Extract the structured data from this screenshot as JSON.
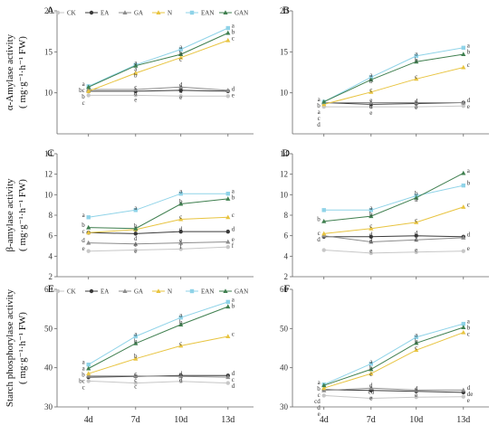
{
  "chart_data": {
    "type": "line",
    "x_labels": [
      "4d",
      "7d",
      "10d",
      "13d"
    ],
    "legend": [
      "CK",
      "EA",
      "GA",
      "N",
      "EAN",
      "GAN"
    ],
    "colors": {
      "CK": "#c7c7c7",
      "EA": "#3a3a3a",
      "GA": "#8c8c8c",
      "N": "#e8c440",
      "EAN": "#8fd3e8",
      "GAN": "#3f7f4f"
    },
    "rows": [
      {
        "ylabel": "α-Amylase activity",
        "yunit": "( mg·g⁻¹·h⁻¹ FW)",
        "panels": [
          "A",
          "B"
        ],
        "ylim": [
          5,
          20
        ],
        "yticks": [
          10,
          15,
          20
        ]
      },
      {
        "ylabel": "β-amylase activity",
        "yunit": "( mg·g⁻¹·h⁻¹ FW)",
        "panels": [
          "C",
          "D"
        ],
        "ylim": [
          2,
          14
        ],
        "yticks": [
          2,
          4,
          6,
          8,
          10,
          12,
          14
        ]
      },
      {
        "ylabel": "Starch phosphorylase activity",
        "yunit": "( mg·g⁻¹·h⁻¹ FW)",
        "panels": [
          "E",
          "F"
        ],
        "ylim": [
          30,
          60
        ],
        "yticks": [
          30,
          40,
          50,
          60
        ]
      }
    ],
    "panels": [
      {
        "id": "A",
        "legend_shown": true,
        "series": [
          {
            "name": "CK",
            "values": [
              9.7,
              9.7,
              9.6,
              9.6
            ],
            "letters": [
              "c",
              "e",
              "e",
              "e"
            ]
          },
          {
            "name": "EA",
            "values": [
              10.2,
              10.2,
              10.3,
              10.2
            ],
            "letters": [
              "bc",
              "d",
              "d",
              "d"
            ]
          },
          {
            "name": "GA",
            "values": [
              10.4,
              10.4,
              10.7,
              10.3
            ],
            "letters": [
              "",
              "c",
              "d",
              ""
            ]
          },
          {
            "name": "N",
            "values": [
              10.2,
              12.4,
              14.3,
              16.4
            ],
            "letters": [
              "b",
              "b",
              "c",
              "c"
            ]
          },
          {
            "name": "EAN",
            "values": [
              10.8,
              13.4,
              15.3,
              17.9
            ],
            "letters": [
              "a",
              "a",
              "a",
              "a"
            ]
          },
          {
            "name": "GAN",
            "values": [
              10.7,
              13.3,
              14.7,
              17.3
            ],
            "letters": [
              "",
              "a",
              "b",
              "b"
            ]
          }
        ]
      },
      {
        "id": "B",
        "legend_shown": false,
        "series": [
          {
            "name": "CK",
            "values": [
              8.3,
              8.3,
              8.3,
              8.4
            ],
            "letters": [
              "d",
              "e",
              "e",
              "e"
            ]
          },
          {
            "name": "EA",
            "values": [
              8.8,
              8.6,
              8.7,
              8.8
            ],
            "letters": [
              "b",
              "d",
              "d",
              "d"
            ]
          },
          {
            "name": "GA",
            "values": [
              8.8,
              8.8,
              8.8,
              8.8
            ],
            "letters": [
              "a",
              "e",
              "",
              ""
            ]
          },
          {
            "name": "N",
            "values": [
              8.6,
              10.1,
              11.7,
              13.1
            ],
            "letters": [
              "c",
              "c",
              "c",
              "c"
            ]
          },
          {
            "name": "EAN",
            "values": [
              8.9,
              11.9,
              14.5,
              15.5
            ],
            "letters": [
              "a",
              "a",
              "a",
              "a"
            ]
          },
          {
            "name": "GAN",
            "values": [
              8.9,
              11.6,
              13.8,
              14.7
            ],
            "letters": [
              "",
              "b",
              "b",
              "b"
            ]
          }
        ]
      },
      {
        "id": "C",
        "legend_shown": false,
        "series": [
          {
            "name": "CK",
            "values": [
              4.5,
              4.6,
              4.7,
              4.9
            ],
            "letters": [
              "e",
              "e",
              "f",
              "f"
            ]
          },
          {
            "name": "EA",
            "values": [
              6.3,
              6.2,
              6.4,
              6.4
            ],
            "letters": [
              "c",
              "d",
              "d",
              "d"
            ]
          },
          {
            "name": "GA",
            "values": [
              5.3,
              5.2,
              5.3,
              5.4
            ],
            "letters": [
              "d",
              "e",
              "e",
              "e"
            ]
          },
          {
            "name": "N",
            "values": [
              6.3,
              6.6,
              7.6,
              7.8
            ],
            "letters": [
              "",
              "c",
              "c",
              "c"
            ]
          },
          {
            "name": "EAN",
            "values": [
              7.8,
              8.5,
              10.1,
              10.1
            ],
            "letters": [
              "a",
              "a",
              "a",
              "a"
            ]
          },
          {
            "name": "GAN",
            "values": [
              6.8,
              6.7,
              9.1,
              9.6
            ],
            "letters": [
              "b",
              "b",
              "b",
              "b"
            ]
          }
        ]
      },
      {
        "id": "D",
        "legend_shown": false,
        "series": [
          {
            "name": "CK",
            "values": [
              4.6,
              4.3,
              4.4,
              4.5
            ],
            "letters": [
              "",
              "e",
              "e",
              "e"
            ]
          },
          {
            "name": "EA",
            "values": [
              5.9,
              5.9,
              6.0,
              5.9
            ],
            "letters": [
              "d",
              "d",
              "d",
              "d"
            ]
          },
          {
            "name": "GA",
            "values": [
              6.0,
              5.4,
              5.6,
              5.8
            ],
            "letters": [
              "c",
              "d",
              "c",
              ""
            ]
          },
          {
            "name": "N",
            "values": [
              6.2,
              6.7,
              7.3,
              8.8
            ],
            "letters": [
              "",
              "c",
              "c",
              "c"
            ]
          },
          {
            "name": "EAN",
            "values": [
              8.5,
              8.5,
              9.9,
              10.9
            ],
            "letters": [
              "",
              "a",
              "b",
              "b"
            ]
          },
          {
            "name": "GAN",
            "values": [
              7.4,
              7.9,
              9.7,
              12.1
            ],
            "letters": [
              "b",
              "b",
              "a",
              "a"
            ]
          }
        ]
      },
      {
        "id": "E",
        "legend_shown": true,
        "series": [
          {
            "name": "CK",
            "values": [
              36.6,
              36.1,
              36.5,
              36.1
            ],
            "letters": [
              "c",
              "c",
              "d",
              "d"
            ]
          },
          {
            "name": "EA",
            "values": [
              37.6,
              37.8,
              38.0,
              38.0
            ],
            "letters": [
              "bc",
              "c",
              "",
              "d"
            ]
          },
          {
            "name": "GA",
            "values": [
              37.9,
              37.9,
              37.8,
              37.6
            ],
            "letters": [
              "",
              "c",
              "d",
              "c"
            ]
          },
          {
            "name": "N",
            "values": [
              38.5,
              42.3,
              45.6,
              48.0
            ],
            "letters": [
              "b",
              "b",
              "c",
              "c"
            ]
          },
          {
            "name": "EAN",
            "values": [
              40.8,
              48.0,
              52.8,
              56.8
            ],
            "letters": [
              "a",
              "a",
              "a",
              "a"
            ]
          },
          {
            "name": "GAN",
            "values": [
              39.8,
              46.2,
              51.0,
              55.6
            ],
            "letters": [
              "a",
              "b",
              "b",
              "b"
            ]
          }
        ]
      },
      {
        "id": "F",
        "legend_shown": false,
        "series": [
          {
            "name": "CK",
            "values": [
              32.9,
              32.2,
              32.5,
              32.6
            ],
            "letters": [
              "e",
              "e",
              "e",
              "e"
            ]
          },
          {
            "name": "EA",
            "values": [
              34.4,
              34.2,
              34.0,
              33.7
            ],
            "letters": [
              "cd",
              "cd",
              "d",
              "de"
            ]
          },
          {
            "name": "GA",
            "values": [
              34.2,
              34.8,
              34.3,
              34.3
            ],
            "letters": [
              "d",
              "d",
              "",
              "d"
            ]
          },
          {
            "name": "N",
            "values": [
              34.8,
              38.5,
              44.5,
              49.0
            ],
            "letters": [
              "c",
              "c",
              "c",
              "c"
            ]
          },
          {
            "name": "EAN",
            "values": [
              35.7,
              41.0,
              47.8,
              51.2
            ],
            "letters": [
              "a",
              "a",
              "a",
              "a"
            ]
          },
          {
            "name": "GAN",
            "values": [
              35.5,
              39.6,
              46.3,
              50.3
            ],
            "letters": [
              "b",
              "b",
              "b",
              "b"
            ]
          }
        ]
      }
    ]
  }
}
